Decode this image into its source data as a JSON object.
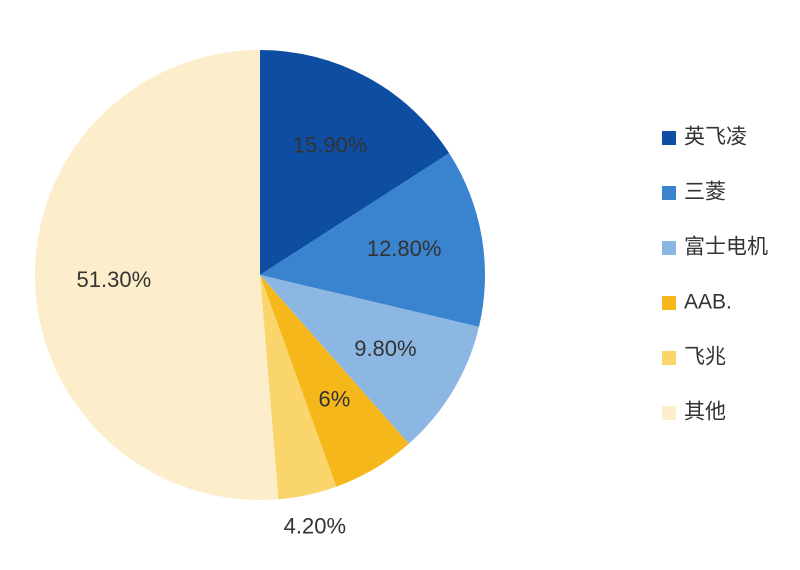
{
  "chart_data": {
    "type": "pie",
    "categories": [
      "英飞凌",
      "三菱",
      "富士电机",
      "AAB.",
      "飞兆",
      "其他"
    ],
    "values": [
      15.9,
      12.8,
      9.8,
      6,
      4.2,
      51.3
    ],
    "value_labels": [
      "15.90%",
      "12.80%",
      "9.80%",
      "6%",
      "4.20%",
      "51.30%"
    ],
    "colors": [
      "#0d4ea3",
      "#3a84cf",
      "#8db7e3",
      "#f5b719",
      "#fad56b",
      "#fdeecb"
    ],
    "legend": "right"
  }
}
